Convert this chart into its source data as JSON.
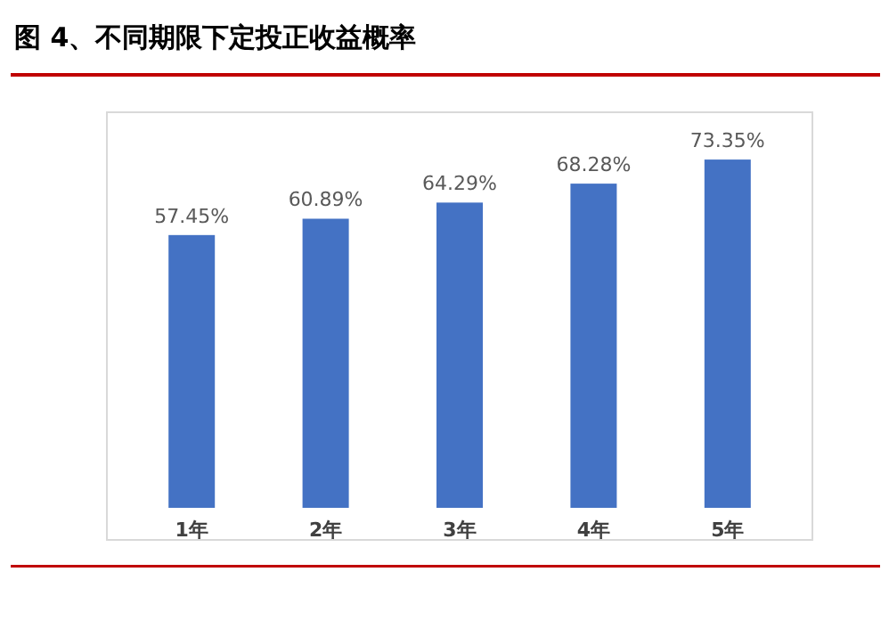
{
  "chart_data": {
    "type": "bar",
    "title": "图 4、不同期限下定投正收益概率",
    "categories": [
      "1年",
      "2年",
      "3年",
      "4年",
      "5年"
    ],
    "values": [
      57.45,
      60.89,
      64.29,
      68.28,
      73.35
    ],
    "value_labels": [
      "57.45%",
      "60.89%",
      "64.29%",
      "68.28%",
      "73.35%"
    ],
    "color": "#4472c4"
  }
}
